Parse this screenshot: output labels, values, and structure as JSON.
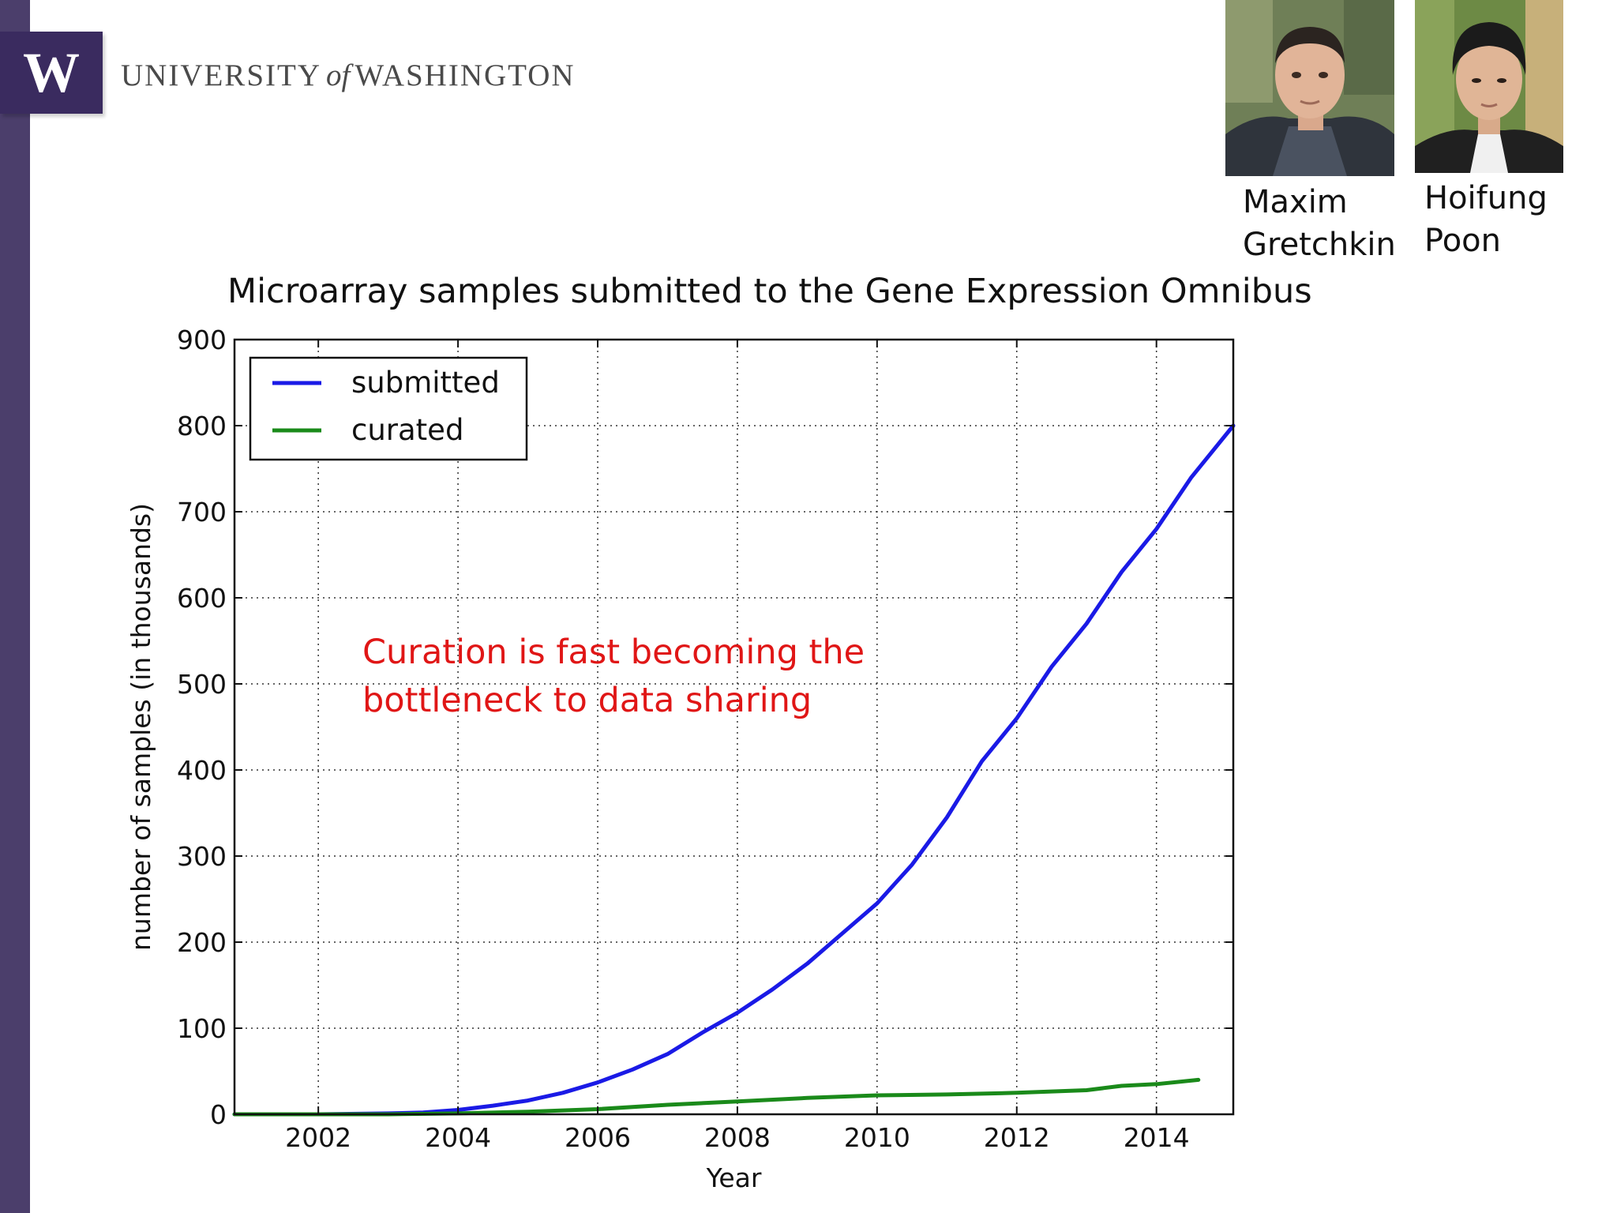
{
  "branding": {
    "logo_letter": "W",
    "university_prefix": "UNIVERSITY",
    "university_of": "of",
    "university_suffix": "WASHINGTON",
    "purple": "#4b3e6b"
  },
  "people": [
    {
      "first": "Maxim",
      "last": "Gretchkin"
    },
    {
      "first": "Hoifung",
      "last": "Poon"
    }
  ],
  "slide_title": "Microarray samples submitted to the Gene Expression Omnibus",
  "annotation": {
    "line1": "Curation is fast becoming the",
    "line2": "bottleneck to data sharing",
    "color": "#e01616"
  },
  "chart_data": {
    "type": "line",
    "title": "",
    "xlabel": "Year",
    "ylabel": "number of samples (in thousands)",
    "xlim": [
      2000.8,
      2015.1
    ],
    "ylim": [
      0,
      900
    ],
    "xticks": [
      2002,
      2004,
      2006,
      2008,
      2010,
      2012,
      2014
    ],
    "yticks": [
      0,
      100,
      200,
      300,
      400,
      500,
      600,
      700,
      800,
      900
    ],
    "grid": true,
    "legend_position": "top-left",
    "series": [
      {
        "name": "submitted",
        "color": "#1a1ae6",
        "x": [
          2000.8,
          2002.0,
          2003.0,
          2003.5,
          2004.0,
          2004.5,
          2005.0,
          2005.5,
          2006.0,
          2006.5,
          2007.0,
          2007.5,
          2008.0,
          2008.5,
          2009.0,
          2009.5,
          2010.0,
          2010.5,
          2011.0,
          2011.5,
          2012.0,
          2012.5,
          2013.0,
          2013.5,
          2014.0,
          2014.5,
          2015.1
        ],
        "y": [
          0,
          0,
          1,
          2,
          5,
          10,
          16,
          25,
          37,
          52,
          70,
          95,
          118,
          145,
          175,
          210,
          245,
          290,
          345,
          410,
          460,
          520,
          570,
          630,
          680,
          740,
          800
        ]
      },
      {
        "name": "curated",
        "color": "#1a8a1a",
        "x": [
          2000.8,
          2002.0,
          2003.0,
          2004.0,
          2005.0,
          2006.0,
          2007.0,
          2008.0,
          2009.0,
          2010.0,
          2011.0,
          2012.0,
          2013.0,
          2013.5,
          2014.0,
          2014.6
        ],
        "y": [
          0,
          0,
          0,
          1,
          3,
          6,
          11,
          15,
          19,
          22,
          23,
          25,
          28,
          33,
          35,
          40
        ]
      }
    ]
  }
}
